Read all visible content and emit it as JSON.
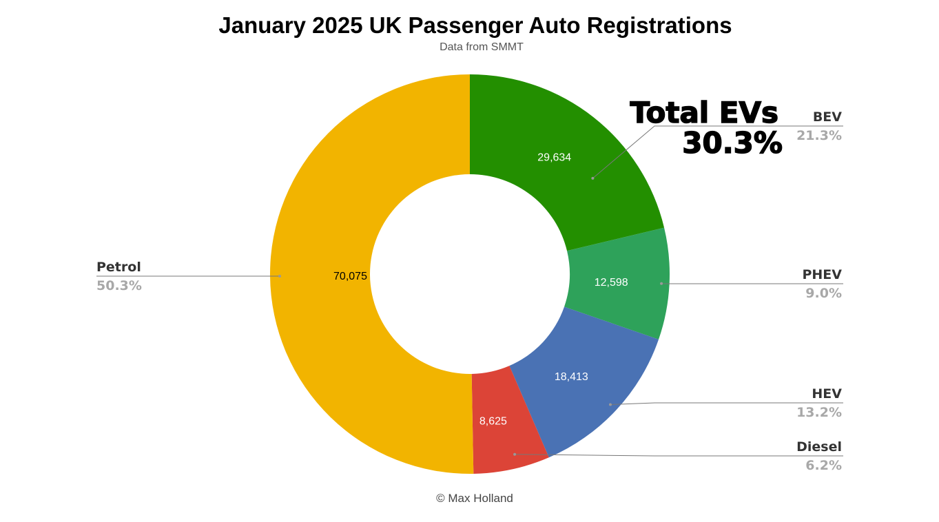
{
  "chart_data": {
    "type": "pie",
    "donut": true,
    "title": "January 2025 UK Passenger Auto Registrations",
    "subtitle": "Data from SMMT",
    "footer": "© Max Holland",
    "slices": [
      {
        "name": "BEV",
        "value": 29634,
        "value_label": "29,634",
        "percent_label": "21.3%",
        "color": "#238f00",
        "value_color": "#ffffff"
      },
      {
        "name": "PHEV",
        "value": 12598,
        "value_label": "12,598",
        "percent_label": "9.0%",
        "color": "#2ea25a",
        "value_color": "#ffffff"
      },
      {
        "name": "HEV",
        "value": 18413,
        "value_label": "18,413",
        "percent_label": "13.2%",
        "color": "#4a72b4",
        "value_color": "#ffffff"
      },
      {
        "name": "Diesel",
        "value": 8625,
        "value_label": "8,625",
        "percent_label": "6.2%",
        "color": "#dc4437",
        "value_color": "#ffffff"
      },
      {
        "name": "Petrol",
        "value": 70075,
        "value_label": "70,075",
        "percent_label": "50.3%",
        "color": "#f2b400",
        "value_color": "#000000"
      }
    ],
    "annotation": {
      "line1": "Total EVs",
      "line2": "30.3%"
    }
  }
}
